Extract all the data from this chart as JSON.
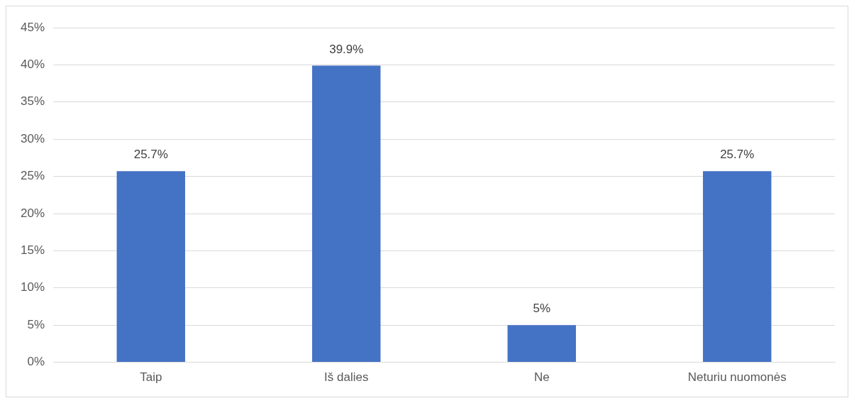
{
  "chart_data": {
    "type": "bar",
    "categories": [
      "Taip",
      "Iš dalies",
      "Ne",
      "Neturiu nuomonės"
    ],
    "values": [
      25.7,
      39.9,
      5,
      25.7
    ],
    "value_labels": [
      "25.7%",
      "39.9%",
      "5%",
      "25.7%"
    ],
    "color": "#4472c4",
    "ylim": [
      0,
      45
    ],
    "yticks": [
      {
        "value": 0,
        "label": "0%"
      },
      {
        "value": 5,
        "label": "5%"
      },
      {
        "value": 10,
        "label": "10%"
      },
      {
        "value": 15,
        "label": "15%"
      },
      {
        "value": 20,
        "label": "20%"
      },
      {
        "value": 25,
        "label": "25%"
      },
      {
        "value": 30,
        "label": "30%"
      },
      {
        "value": 35,
        "label": "35%"
      },
      {
        "value": 40,
        "label": "40%"
      },
      {
        "value": 45,
        "label": "45%"
      }
    ],
    "grid": "y",
    "legend": false
  }
}
